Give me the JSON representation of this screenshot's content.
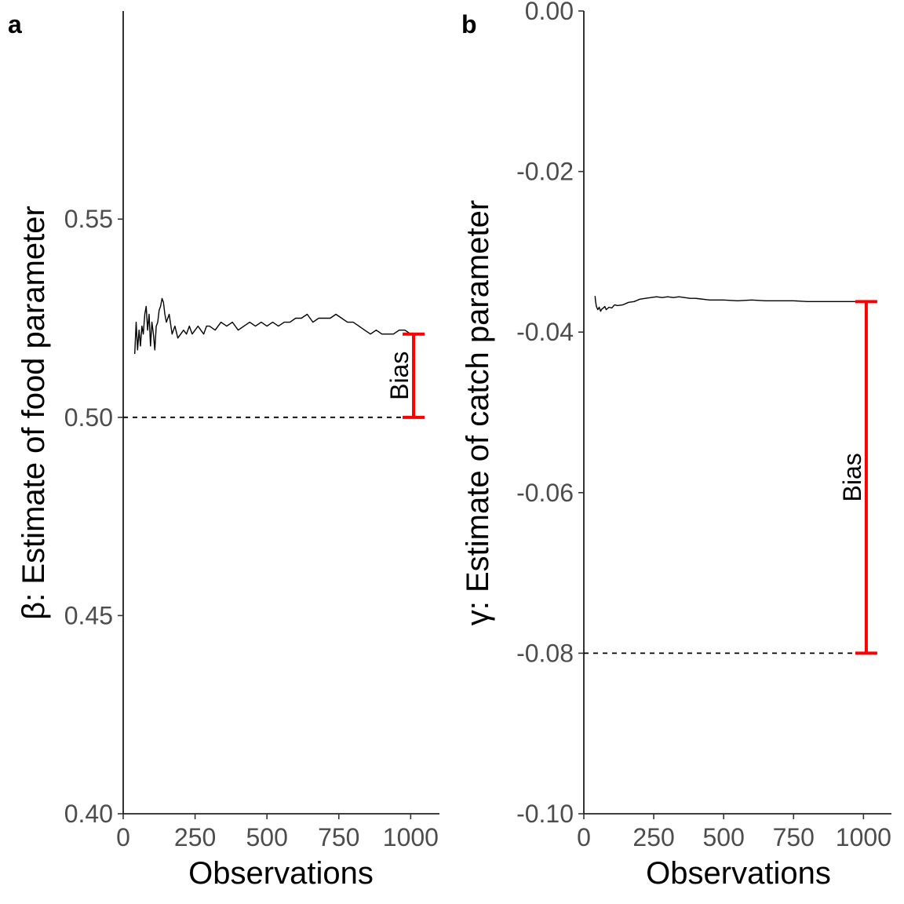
{
  "chart_data": [
    {
      "panel_tag": "a",
      "type": "line",
      "xlabel": "Observations",
      "ylabel": "β: Estimate of food parameter",
      "xlim": [
        0,
        1100
      ],
      "ylim": [
        0.4,
        0.6025
      ],
      "x_ticks": [
        0,
        250,
        500,
        750,
        1000
      ],
      "x_tick_labels": [
        "0",
        "250",
        "500",
        "750",
        "1000"
      ],
      "y_ticks": [
        0.4,
        0.45,
        0.5,
        0.55
      ],
      "y_tick_labels": [
        "0.40",
        "0.45",
        "0.50",
        "0.55"
      ],
      "grid": false,
      "series": [
        {
          "color": "#000000",
          "x": [
            40,
            45,
            50,
            55,
            60,
            65,
            70,
            75,
            80,
            85,
            90,
            95,
            100,
            105,
            110,
            115,
            120,
            125,
            130,
            135,
            140,
            145,
            150,
            160,
            170,
            180,
            190,
            200,
            210,
            220,
            230,
            240,
            250,
            260,
            270,
            280,
            290,
            300,
            320,
            340,
            360,
            380,
            400,
            420,
            440,
            460,
            480,
            500,
            520,
            540,
            560,
            580,
            600,
            620,
            640,
            660,
            680,
            700,
            720,
            740,
            760,
            780,
            800,
            820,
            840,
            860,
            880,
            900,
            920,
            940,
            960,
            980,
            1000
          ],
          "y": [
            0.516,
            0.524,
            0.517,
            0.522,
            0.518,
            0.523,
            0.521,
            0.526,
            0.528,
            0.522,
            0.526,
            0.518,
            0.524,
            0.521,
            0.517,
            0.523,
            0.524,
            0.527,
            0.528,
            0.53,
            0.529,
            0.526,
            0.524,
            0.526,
            0.521,
            0.523,
            0.52,
            0.521,
            0.522,
            0.521,
            0.523,
            0.521,
            0.522,
            0.523,
            0.522,
            0.521,
            0.523,
            0.523,
            0.522,
            0.524,
            0.523,
            0.524,
            0.522,
            0.523,
            0.524,
            0.523,
            0.524,
            0.523,
            0.524,
            0.523,
            0.524,
            0.524,
            0.525,
            0.525,
            0.526,
            0.524,
            0.525,
            0.525,
            0.525,
            0.526,
            0.525,
            0.524,
            0.524,
            0.523,
            0.522,
            0.521,
            0.522,
            0.521,
            0.521,
            0.521,
            0.522,
            0.522,
            0.521
          ]
        }
      ],
      "reference_line": {
        "y": 0.5,
        "style": "dashed",
        "color": "#000000"
      },
      "bias_bar": {
        "label": "Bias",
        "x": 1010,
        "y_from": 0.5,
        "y_to": 0.521,
        "color": "#ff0000"
      }
    },
    {
      "panel_tag": "b",
      "type": "line",
      "xlabel": "Observations",
      "ylabel": "γ: Estimate of catch parameter",
      "xlim": [
        0,
        1100
      ],
      "ylim": [
        -0.1,
        0.0
      ],
      "x_ticks": [
        0,
        250,
        500,
        750,
        1000
      ],
      "x_tick_labels": [
        "0",
        "250",
        "500",
        "750",
        "1000"
      ],
      "y_ticks": [
        -0.1,
        -0.08,
        -0.06,
        -0.04,
        -0.02,
        0.0
      ],
      "y_tick_labels": [
        "-0.10",
        "-0.08",
        "-0.06",
        "-0.04",
        "-0.02",
        "0.00"
      ],
      "grid": false,
      "series": [
        {
          "color": "#000000",
          "x": [
            40,
            42,
            45,
            50,
            55,
            60,
            65,
            70,
            75,
            80,
            90,
            100,
            110,
            120,
            140,
            160,
            180,
            200,
            220,
            240,
            260,
            280,
            300,
            320,
            340,
            360,
            380,
            400,
            450,
            500,
            550,
            600,
            650,
            700,
            750,
            800,
            850,
            900,
            950,
            1000
          ],
          "y": [
            -0.0355,
            -0.0362,
            -0.0368,
            -0.0372,
            -0.0369,
            -0.0374,
            -0.0371,
            -0.037,
            -0.0368,
            -0.0372,
            -0.0369,
            -0.037,
            -0.0366,
            -0.0367,
            -0.0366,
            -0.0363,
            -0.0362,
            -0.0359,
            -0.0358,
            -0.0357,
            -0.0356,
            -0.0357,
            -0.0356,
            -0.0357,
            -0.0356,
            -0.0357,
            -0.0358,
            -0.0358,
            -0.036,
            -0.036,
            -0.0361,
            -0.036,
            -0.0361,
            -0.0361,
            -0.0361,
            -0.0362,
            -0.0362,
            -0.0362,
            -0.0362,
            -0.0362
          ]
        }
      ],
      "reference_line": {
        "y": -0.08,
        "style": "dashed",
        "color": "#000000"
      },
      "bias_bar": {
        "label": "Bias",
        "x": 1010,
        "y_from": -0.08,
        "y_to": -0.0362,
        "color": "#ff0000"
      }
    }
  ]
}
